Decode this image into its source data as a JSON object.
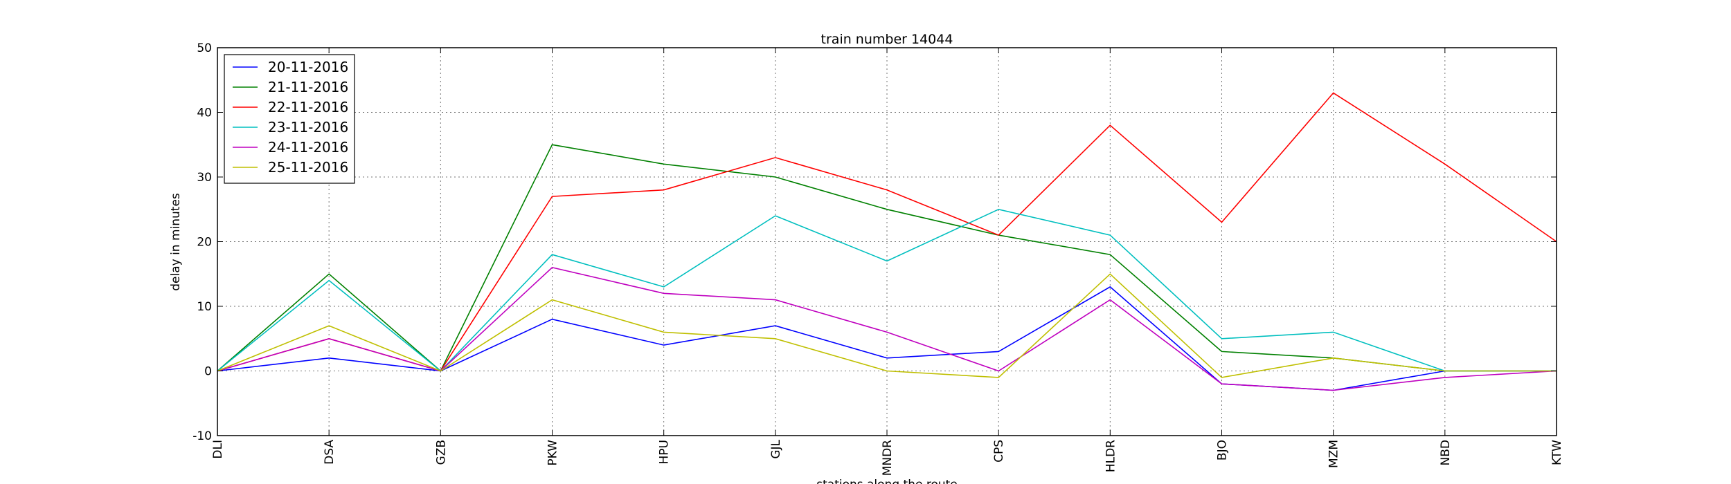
{
  "chart_data": {
    "type": "line",
    "title": "train number 14044",
    "xlabel": "stations along the route",
    "ylabel": "delay in minutes",
    "categories": [
      "DLI",
      "DSA",
      "GZB",
      "PKW",
      "HPU",
      "GJL",
      "MNDR",
      "CPS",
      "HLDR",
      "BJO",
      "MZM",
      "NBD",
      "KTW"
    ],
    "ylim": [
      -10,
      50
    ],
    "yticks": [
      -10,
      0,
      10,
      20,
      30,
      40,
      50
    ],
    "grid": true,
    "grid_style": "dotted",
    "legend_position": "upper-left",
    "series": [
      {
        "name": "20-11-2016",
        "color": "#0000ff",
        "values": [
          0,
          2,
          0,
          8,
          4,
          7,
          2,
          3,
          13,
          -2,
          -3,
          0,
          0
        ]
      },
      {
        "name": "21-11-2016",
        "color": "#008000",
        "values": [
          0,
          15,
          0,
          35,
          32,
          30,
          25,
          21,
          18,
          3,
          2,
          0,
          0
        ]
      },
      {
        "name": "22-11-2016",
        "color": "#ff0000",
        "values": [
          0,
          5,
          0,
          27,
          28,
          33,
          28,
          21,
          38,
          23,
          43,
          32,
          20
        ]
      },
      {
        "name": "23-11-2016",
        "color": "#00bfbf",
        "values": [
          0,
          14,
          0,
          18,
          13,
          24,
          17,
          25,
          21,
          5,
          6,
          0,
          0
        ]
      },
      {
        "name": "24-11-2016",
        "color": "#bf00bf",
        "values": [
          0,
          5,
          0,
          16,
          12,
          11,
          6,
          0,
          11,
          -2,
          -3,
          -1,
          0
        ]
      },
      {
        "name": "25-11-2016",
        "color": "#bfbf00",
        "values": [
          0,
          7,
          0,
          11,
          6,
          5,
          0,
          -1,
          15,
          -1,
          2,
          0,
          0
        ]
      }
    ]
  }
}
